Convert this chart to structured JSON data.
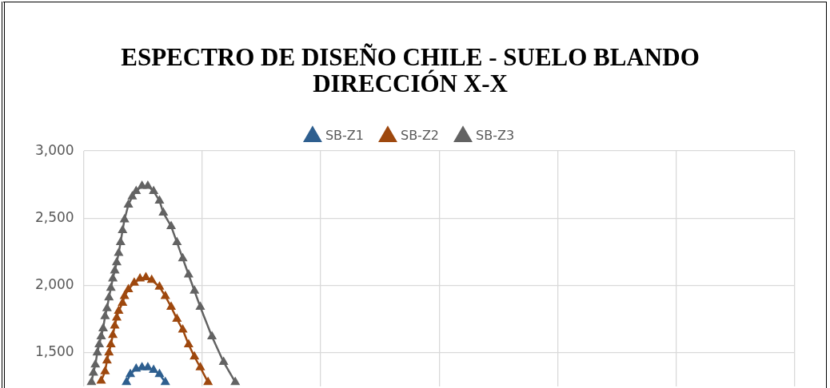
{
  "chart_data": {
    "type": "line",
    "title": "ESPECTRO DE DISEÑO CHILE - SUELO BLANDO\nDIRECCIÓN X-X",
    "categories": [
      null,
      null,
      null,
      null,
      null,
      null,
      null,
      null,
      null,
      null,
      null,
      null,
      null,
      null,
      null,
      null,
      null,
      null,
      null,
      null,
      null,
      null,
      null,
      null,
      null,
      null,
      null,
      null,
      null,
      null,
      null,
      null,
      null,
      null,
      null,
      null,
      null,
      null,
      null,
      null,
      null,
      null,
      null,
      null,
      null,
      null,
      null,
      null,
      null,
      null,
      null,
      null,
      null,
      null,
      null,
      null,
      null,
      null,
      null,
      null,
      null,
      null,
      null,
      null,
      null,
      null,
      null,
      null,
      null,
      null,
      null,
      null,
      null,
      null,
      null,
      null,
      null,
      null,
      null,
      null,
      null,
      null,
      null,
      null,
      null,
      null,
      null,
      null,
      null,
      null,
      null,
      null,
      null,
      null,
      null,
      null,
      null,
      null,
      null,
      null,
      null,
      null,
      null,
      null,
      null,
      null,
      null,
      null,
      null,
      null,
      null,
      null,
      null,
      null,
      null,
      null,
      null,
      null,
      null,
      null,
      null,
      null,
      null,
      null,
      null,
      null,
      null,
      null,
      null,
      null,
      null,
      null,
      null,
      null,
      null,
      null,
      null,
      null,
      null,
      null,
      null,
      null,
      null,
      null,
      null,
      null,
      null,
      null,
      null,
      null,
      null,
      null,
      null,
      null,
      null,
      null,
      null,
      null,
      null,
      null,
      null,
      null,
      null,
      null,
      null,
      null,
      null,
      null,
      null,
      null,
      null,
      null,
      null,
      null,
      null,
      null,
      null,
      null,
      null,
      null,
      null,
      null,
      null,
      null,
      null,
      null,
      null,
      null,
      null,
      null,
      null,
      null,
      null,
      null,
      null,
      null,
      null,
      null,
      null,
      null,
      null,
      null,
      null,
      null,
      null,
      null,
      null,
      null,
      null,
      null,
      null,
      null,
      null,
      null,
      null,
      null,
      null,
      null,
      null,
      null,
      null,
      null,
      null,
      null,
      null,
      null,
      null,
      null,
      null,
      null,
      null,
      null,
      null,
      null,
      null,
      null,
      null,
      null,
      null,
      null,
      null,
      null,
      null,
      null,
      null,
      null,
      null,
      null,
      null,
      null,
      null,
      null,
      null,
      null,
      null,
      null,
      null,
      null,
      null,
      null,
      null,
      null,
      null,
      null,
      null,
      null,
      null,
      null,
      null,
      null,
      null,
      null,
      null,
      null,
      null,
      null,
      null,
      null,
      null,
      null,
      null,
      null,
      null,
      null,
      null,
      null,
      null,
      null,
      null,
      null,
      null,
      null,
      null,
      null,
      null,
      null,
      null,
      null,
      null,
      null,
      null,
      null,
      null,
      null,
      null,
      null,
      null,
      null,
      null,
      null,
      null,
      null,
      null,
      null,
      null,
      null,
      null,
      null,
      null,
      null,
      null,
      null,
      null,
      null,
      null,
      null,
      null,
      null,
      null,
      null,
      null,
      null,
      null,
      null,
      null,
      null,
      null,
      null,
      null,
      null,
      null,
      null,
      null,
      null,
      null,
      null,
      null,
      null,
      null,
      null,
      null,
      null,
      null,
      null,
      null,
      null,
      null,
      null,
      null,
      null,
      null,
      null,
      null,
      null,
      null,
      null,
      null
    ],
    "series": [
      {
        "name": "SB-Z1",
        "color": "#2e5f8f",
        "values": [
          null,
          null,
          null,
          null,
          null,
          null,
          null,
          null,
          null,
          null,
          null,
          null,
          null,
          null,
          null,
          null,
          null,
          null,
          null,
          null,
          null,
          null,
          1280,
          null,
          1340,
          null,
          null,
          1380,
          null,
          null,
          1390,
          null,
          null,
          1390,
          null,
          null,
          1370,
          null,
          null,
          1340,
          null,
          null,
          1280,
          null,
          null,
          null,
          null,
          null,
          null,
          null,
          null,
          null,
          null,
          null,
          null,
          null,
          null,
          null,
          null,
          null,
          null,
          null,
          null,
          null,
          null,
          null,
          null,
          null,
          null,
          null,
          null,
          null,
          null,
          null,
          null,
          null,
          null,
          null,
          null,
          null,
          null,
          null,
          null,
          null,
          null,
          null,
          null,
          null,
          null,
          null,
          null,
          null,
          null,
          null,
          null,
          null,
          null,
          null,
          null,
          null,
          null,
          null,
          null,
          null,
          null,
          null,
          null,
          null,
          null,
          null,
          null,
          null,
          null,
          null,
          null,
          null,
          null,
          null,
          null,
          null,
          null,
          null,
          null,
          null,
          null,
          null,
          null,
          null,
          null,
          null,
          null,
          null,
          null,
          null,
          null,
          null,
          null,
          null,
          null,
          null,
          null,
          null,
          null,
          null,
          null,
          null,
          null,
          null,
          null,
          null,
          null,
          null,
          null,
          null,
          null,
          null,
          null,
          null,
          null,
          null,
          null,
          null,
          null,
          null,
          null,
          null,
          null,
          null,
          null,
          null,
          null,
          null,
          null,
          null,
          null,
          null,
          null,
          null,
          null,
          null,
          null,
          null,
          null,
          null,
          null,
          null,
          null,
          null,
          null,
          null,
          null,
          null,
          null,
          null,
          null,
          null,
          null,
          null,
          null,
          null,
          null,
          null,
          null,
          null,
          null,
          null,
          null,
          null,
          null,
          null,
          null,
          null,
          null,
          null,
          null,
          null,
          null,
          null,
          null,
          null,
          null,
          null,
          null,
          null,
          null,
          null,
          null,
          null,
          null,
          null,
          null,
          null,
          null,
          null,
          null,
          null,
          null,
          null,
          null,
          null,
          null,
          null,
          null,
          null,
          null,
          null,
          null,
          null,
          null,
          null,
          null,
          null,
          null,
          null,
          null,
          null,
          null,
          null,
          null,
          null,
          null,
          null,
          null,
          null,
          null,
          null,
          null,
          null,
          null,
          null,
          null,
          null,
          null,
          null,
          null,
          null,
          null,
          null,
          null,
          null,
          null,
          null,
          null,
          null,
          null,
          null,
          null,
          null,
          null,
          null,
          null,
          null,
          null,
          null,
          null,
          null,
          null,
          null,
          null,
          null,
          null,
          null,
          null,
          null,
          null,
          null,
          null,
          null,
          null,
          null,
          null,
          null,
          null,
          null,
          null,
          null,
          null,
          null,
          null,
          null,
          null,
          null,
          null,
          null,
          null,
          null,
          null,
          null,
          null,
          null,
          null,
          null,
          null,
          null,
          null,
          null,
          null,
          null,
          null,
          null,
          null,
          null,
          null,
          null,
          null,
          null,
          null,
          null,
          null,
          null,
          null,
          null,
          null,
          null,
          null,
          null,
          null,
          null,
          null,
          null,
          null,
          null,
          null,
          null,
          null,
          null,
          null
        ]
      },
      {
        "name": "SB-Z2",
        "color": "#9e480e",
        "values": [
          null,
          null,
          null,
          null,
          null,
          null,
          null,
          null,
          null,
          1290,
          null,
          1360,
          1440,
          1500,
          1560,
          1630,
          1700,
          1760,
          1810,
          null,
          1870,
          1920,
          null,
          1970,
          null,
          null,
          2020,
          null,
          null,
          2050,
          null,
          null,
          2060,
          null,
          null,
          2040,
          null,
          null,
          null,
          1990,
          null,
          null,
          1920,
          null,
          null,
          1840,
          null,
          null,
          1750,
          null,
          null,
          1670,
          null,
          null,
          1560,
          null,
          null,
          1470,
          null,
          null,
          1390,
          null,
          null,
          null,
          1280,
          null,
          null,
          null,
          null,
          null,
          null,
          null,
          null,
          null,
          null,
          null,
          null,
          null,
          null,
          null,
          null,
          null,
          null,
          null,
          null,
          null,
          null,
          null,
          null,
          null,
          null,
          null,
          null,
          null,
          null,
          null,
          null,
          null,
          null,
          null,
          null,
          null,
          null,
          null,
          null,
          null,
          null,
          null,
          null,
          null,
          null,
          null,
          null,
          null,
          null,
          null,
          null,
          null,
          null,
          null,
          null,
          null,
          null,
          null,
          null,
          null,
          null,
          null,
          null,
          null,
          null,
          null,
          null,
          null,
          null,
          null,
          null,
          null,
          null,
          null,
          null,
          null,
          null,
          null,
          null,
          null,
          null,
          null,
          null,
          null,
          null,
          null,
          null,
          null,
          null,
          null,
          null,
          null,
          null,
          null,
          null,
          null,
          null,
          null,
          null,
          null,
          null,
          null,
          null,
          null,
          null,
          null,
          null,
          null,
          null,
          null,
          null,
          null,
          null,
          null,
          null,
          null,
          null,
          null,
          null,
          null,
          null,
          null,
          null,
          null,
          null,
          null,
          null,
          null,
          null,
          null,
          null,
          null,
          null,
          null,
          null,
          null,
          null,
          null,
          null,
          null,
          null,
          null,
          null,
          null,
          null,
          null,
          null,
          null,
          null,
          null,
          null,
          null,
          null,
          null,
          null,
          null,
          null,
          null,
          null,
          null,
          null,
          null,
          null,
          null,
          null,
          null,
          null,
          null,
          null,
          null,
          null,
          null,
          null,
          null,
          null,
          null,
          null,
          null,
          null,
          null,
          null,
          null,
          null,
          null,
          null,
          null,
          null,
          null,
          null,
          null,
          null,
          null,
          null,
          null,
          null,
          null,
          null,
          null,
          null,
          null,
          null,
          null,
          null,
          null,
          null,
          null,
          null,
          null,
          null,
          null,
          null,
          null,
          null,
          null,
          null,
          null,
          null,
          null,
          null,
          null,
          null,
          null,
          null,
          null,
          null,
          null,
          null,
          null,
          null,
          null,
          null,
          null,
          null,
          null,
          null,
          null,
          null,
          null,
          null,
          null,
          null,
          null,
          null,
          null,
          null,
          null,
          null,
          null,
          null,
          null,
          null,
          null,
          null,
          null,
          null,
          null,
          null,
          null,
          null,
          null,
          null,
          null,
          null,
          null,
          null,
          null,
          null,
          null,
          null,
          null,
          null,
          null,
          null,
          null,
          null,
          null,
          null,
          null,
          null,
          null,
          null,
          null,
          null,
          null,
          null,
          null,
          null,
          null,
          null,
          null,
          null,
          null,
          null,
          null,
          null,
          null,
          null,
          null,
          null,
          null,
          null
        ]
      },
      {
        "name": "SB-Z3",
        "color": "#636363",
        "values": [
          null,
          null,
          null,
          null,
          1280,
          1350,
          1410,
          1500,
          1560,
          1620,
          1680,
          1770,
          1830,
          1910,
          1980,
          2050,
          2110,
          2170,
          2240,
          2320,
          2410,
          2490,
          null,
          2600,
          null,
          2660,
          null,
          2700,
          null,
          null,
          2740,
          null,
          null,
          2740,
          null,
          null,
          2700,
          null,
          null,
          2630,
          null,
          2540,
          null,
          null,
          null,
          2440,
          null,
          null,
          2320,
          null,
          null,
          2200,
          null,
          null,
          2080,
          null,
          null,
          1960,
          null,
          null,
          1840,
          null,
          null,
          null,
          null,
          null,
          1620,
          null,
          null,
          null,
          null,
          null,
          1430,
          null,
          null,
          null,
          null,
          null,
          1280,
          null,
          null,
          null,
          null,
          null,
          null,
          null,
          null,
          null,
          null,
          null,
          null,
          null,
          null,
          null,
          null,
          null,
          null,
          null,
          null,
          null,
          null,
          null,
          null,
          null,
          null,
          null,
          null,
          null,
          null,
          null,
          null,
          null,
          null,
          null,
          null,
          null,
          null,
          null,
          null,
          null,
          null,
          null,
          null,
          null,
          null,
          null,
          null,
          null,
          null,
          null,
          null,
          null,
          null,
          null,
          null,
          null,
          null,
          null,
          null,
          null,
          null,
          null,
          null,
          null,
          null,
          null,
          null,
          null,
          null,
          null,
          null,
          null,
          null,
          null,
          null,
          null,
          null,
          null,
          null,
          null,
          null,
          null,
          null,
          null,
          null,
          null,
          null,
          null,
          null,
          null,
          null,
          null,
          null,
          null,
          null,
          null,
          null,
          null,
          null,
          null,
          null,
          null,
          null,
          null,
          null,
          null,
          null,
          null,
          null,
          null,
          null,
          null,
          null,
          null,
          null,
          null,
          null,
          null,
          null,
          null,
          null,
          null,
          null,
          null,
          null,
          null,
          null,
          null,
          null,
          null,
          null,
          null,
          null,
          null,
          null,
          null,
          null,
          null,
          null,
          null,
          null,
          null,
          null,
          null,
          null,
          null,
          null,
          null,
          null,
          null,
          null,
          null,
          null,
          null,
          null,
          null,
          null,
          null,
          null,
          null,
          null,
          null,
          null,
          null,
          null,
          null,
          null,
          null,
          null,
          null,
          null,
          null,
          null,
          null,
          null,
          null,
          null,
          null,
          null,
          null,
          null,
          null,
          null,
          null,
          null,
          null,
          null,
          null,
          null,
          null,
          null,
          null,
          null,
          null,
          null,
          null,
          null,
          null,
          null,
          null,
          null,
          null,
          null,
          null,
          null,
          null,
          null,
          null,
          null,
          null,
          null,
          null,
          null,
          null,
          null,
          null,
          null,
          null,
          null,
          null,
          null,
          null,
          null,
          null,
          null,
          null,
          null,
          null,
          null,
          null,
          null,
          null,
          null,
          null,
          null,
          null,
          null,
          null,
          null,
          null,
          null,
          null,
          null,
          null,
          null,
          null,
          null,
          null,
          null,
          null,
          null,
          null,
          null,
          null,
          null,
          null,
          null,
          null,
          null,
          null,
          null,
          null,
          null,
          null,
          null,
          null,
          null,
          null,
          null,
          null,
          null,
          null,
          null,
          null,
          null,
          null,
          null,
          null,
          null,
          null,
          null,
          null,
          null,
          null,
          null,
          null,
          null
        ]
      }
    ],
    "ylim": [
      1250,
      3000
    ],
    "yticks": [
      {
        "value": 1500,
        "label": "1,500"
      },
      {
        "value": 2000,
        "label": "2,000"
      },
      {
        "value": 2500,
        "label": "2,500"
      },
      {
        "value": 3000,
        "label": "3,000"
      }
    ],
    "grid": true,
    "legend": "top",
    "marker": "triangle",
    "line_style": "solid",
    "tick_labels": "y"
  }
}
